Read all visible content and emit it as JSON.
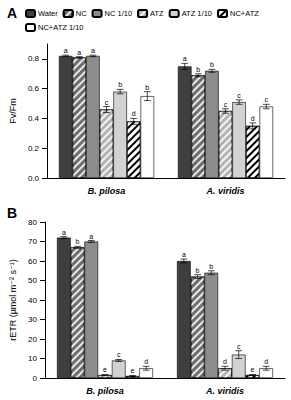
{
  "chart_data": [
    {
      "type": "bar",
      "title": "A",
      "y_label": "Fv/Fm",
      "categories": [
        "B. pilosa",
        "A. viridis"
      ],
      "ylim": [
        0,
        0.9
      ],
      "yticks": [
        {
          "value": 0,
          "label": "0.0"
        },
        {
          "value": 0.2,
          "label": "0.2"
        },
        {
          "value": 0.4,
          "label": "0.4"
        },
        {
          "value": 0.6,
          "label": "0.6"
        },
        {
          "value": 0.8,
          "label": "0.8"
        }
      ],
      "grid": false,
      "legend": "top",
      "series": [
        {
          "name": "Water",
          "color": "#3f3f3f",
          "values": [
            0.82,
            0.75
          ],
          "errors": [
            0.005,
            0.02
          ],
          "letters": [
            "a",
            "a"
          ]
        },
        {
          "name": "NC",
          "color": "#6e6e6e",
          "marker": "hatched",
          "values": [
            0.81,
            0.69
          ],
          "errors": [
            0.005,
            0.01
          ],
          "letters": [
            "a",
            "b"
          ]
        },
        {
          "name": "NC 1/10",
          "color": "#8c8c8c",
          "values": [
            0.82,
            0.72
          ],
          "errors": [
            0.005,
            0.01
          ],
          "letters": [
            "a",
            "b"
          ]
        },
        {
          "name": "ATZ",
          "color": "#b4b4b4",
          "marker": "hatched",
          "values": [
            0.46,
            0.45
          ],
          "errors": [
            0.02,
            0.015
          ],
          "letters": [
            "c",
            "c"
          ]
        },
        {
          "name": "ATZ 1/10",
          "color": "#d2d2d2",
          "values": [
            0.58,
            0.51
          ],
          "errors": [
            0.015,
            0.015
          ],
          "letters": [
            "b",
            "c"
          ]
        },
        {
          "name": "NC+ATZ",
          "color": "#ffffff",
          "marker": "hatched",
          "values": [
            0.38,
            0.35
          ],
          "errors": [
            0.02,
            0.02
          ],
          "letters": [
            "d",
            "d"
          ]
        },
        {
          "name": "NC+ATZ 1/10",
          "color": "#ffffff",
          "values": [
            0.55,
            0.48
          ],
          "errors": [
            0.03,
            0.015
          ],
          "letters": [
            "b",
            "c"
          ]
        }
      ]
    },
    {
      "type": "bar",
      "title": "B",
      "y_label": "rETR (µmol m⁻² s⁻¹)",
      "categories": [
        "B. pilosa",
        "A. viridis"
      ],
      "ylim": [
        0,
        80
      ],
      "yticks": [
        0,
        10,
        20,
        30,
        40,
        50,
        60,
        70,
        80
      ],
      "grid": false,
      "series": [
        {
          "name": "Water",
          "color": "#3f3f3f",
          "values": [
            72,
            60
          ],
          "errors": [
            0.5,
            1
          ],
          "letters": [
            "a",
            "a"
          ]
        },
        {
          "name": "NC",
          "color": "#6e6e6e",
          "marker": "hatched",
          "values": [
            67,
            52
          ],
          "errors": [
            0.5,
            1
          ],
          "letters": [
            "b",
            "b"
          ]
        },
        {
          "name": "NC 1/10",
          "color": "#8c8c8c",
          "values": [
            70,
            54
          ],
          "errors": [
            0.5,
            1
          ],
          "letters": [
            "a",
            "b"
          ]
        },
        {
          "name": "ATZ",
          "color": "#b4b4b4",
          "marker": "hatched",
          "values": [
            1.5,
            5
          ],
          "errors": [
            0.3,
            1
          ],
          "letters": [
            "e",
            "d"
          ]
        },
        {
          "name": "ATZ 1/10",
          "color": "#d2d2d2",
          "values": [
            9,
            12
          ],
          "errors": [
            0.5,
            2
          ],
          "letters": [
            "c",
            "c"
          ]
        },
        {
          "name": "NC+ATZ",
          "color": "#ffffff",
          "marker": "hatched",
          "values": [
            1,
            1.5
          ],
          "errors": [
            0.3,
            0.3
          ],
          "letters": [
            "e",
            "e"
          ]
        },
        {
          "name": "NC+ATZ 1/10",
          "color": "#ffffff",
          "values": [
            5,
            5
          ],
          "errors": [
            1,
            1
          ],
          "letters": [
            "d",
            "d"
          ]
        }
      ]
    }
  ]
}
